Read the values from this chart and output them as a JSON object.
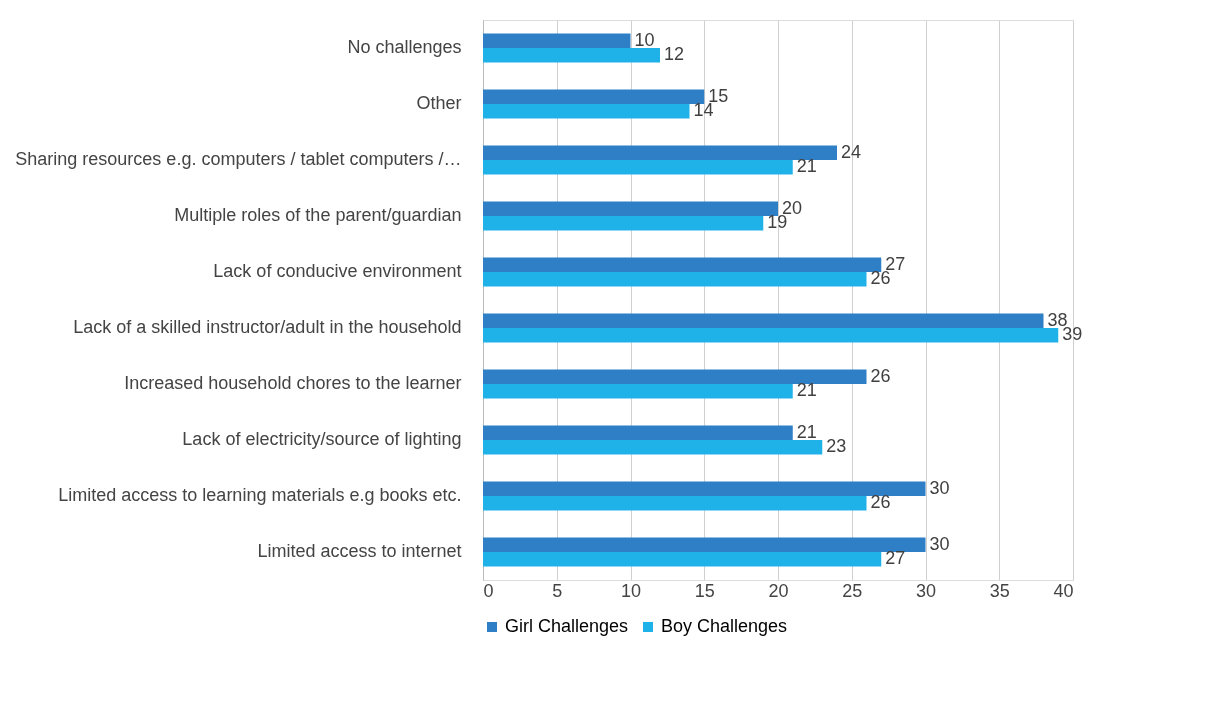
{
  "chart_data": {
    "type": "bar",
    "orientation": "horizontal",
    "categories": [
      "No challenges",
      "Other",
      "Sharing resources e.g. computers / tablet computers /…",
      "Multiple roles of the parent/guardian",
      "Lack of conducive environment",
      "Lack of a skilled instructor/adult in the household",
      "Increased household chores to the learner",
      "Lack of electricity/source of lighting",
      "Limited access to learning materials e.g books etc.",
      "Limited access to internet"
    ],
    "series": [
      {
        "name": "Girl Challenges",
        "color": "#2e7fc6",
        "values": [
          10,
          15,
          24,
          20,
          27,
          38,
          26,
          21,
          30,
          30
        ]
      },
      {
        "name": "Boy Challenges",
        "color": "#1fb2e8",
        "values": [
          12,
          14,
          21,
          19,
          26,
          39,
          21,
          23,
          26,
          27
        ]
      }
    ],
    "xlim": [
      0,
      40
    ],
    "xticks": [
      0,
      5,
      10,
      15,
      20,
      25,
      30,
      35,
      40
    ],
    "grid": "x",
    "legend": "bottom",
    "data_labels": true
  }
}
